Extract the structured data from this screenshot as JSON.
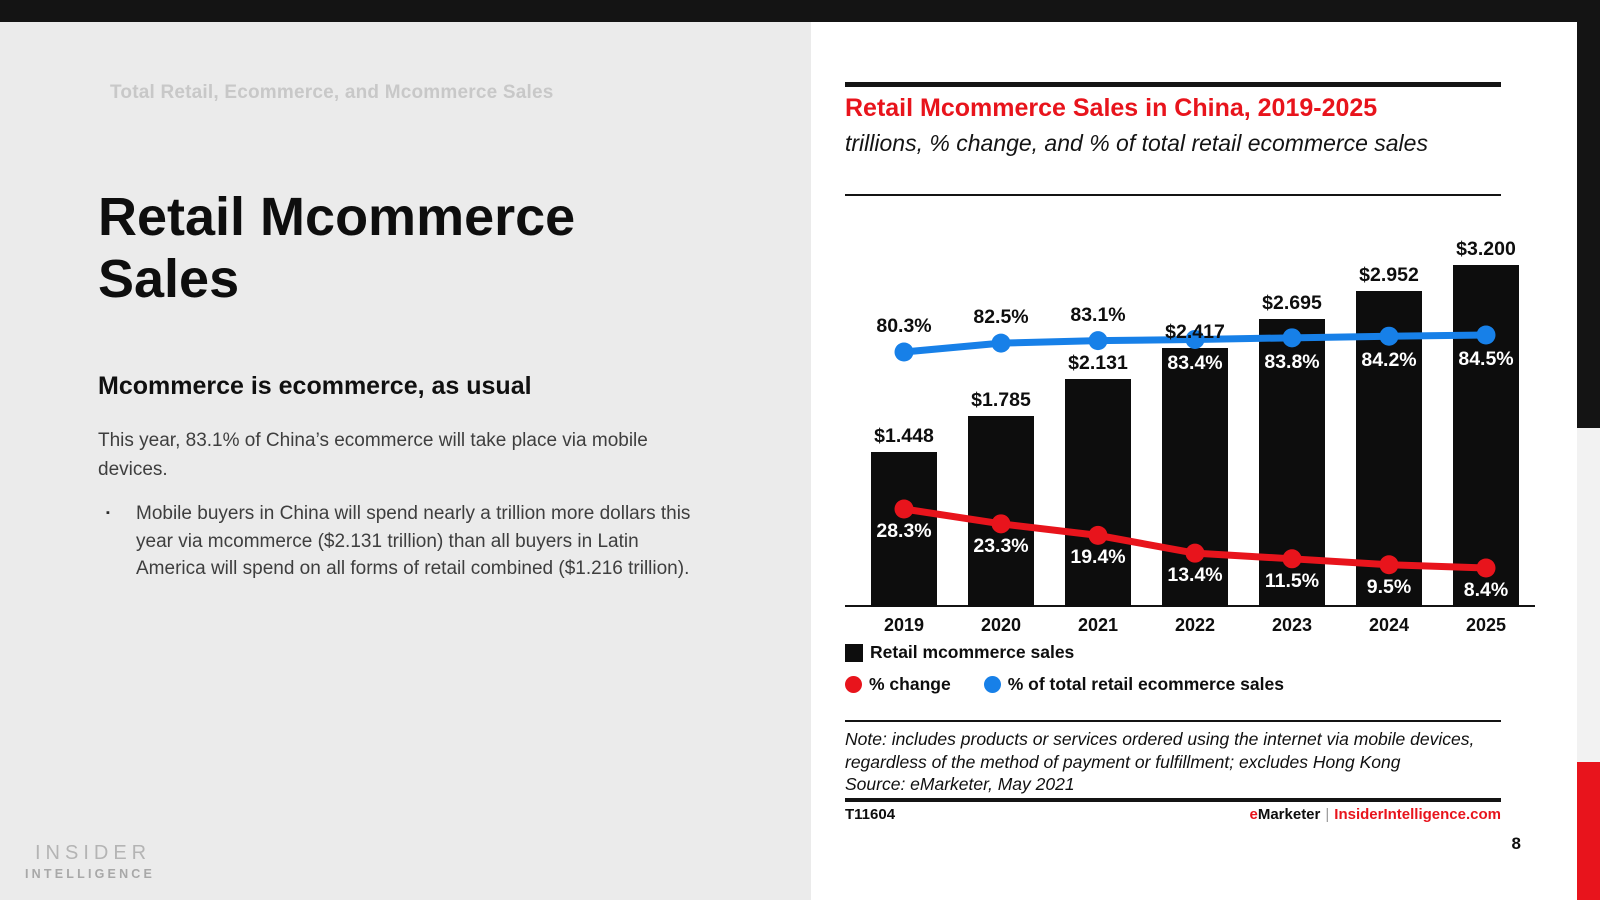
{
  "left_panel": {
    "eyebrow": "Total Retail, Ecommerce, and Mcommerce Sales",
    "title": "Retail Mcommerce Sales",
    "subhead": "Mcommerce is ecommerce, as usual",
    "paragraph": "This year, 83.1% of China’s ecommerce will take place via mobile devices.",
    "bullet_marker": "▪",
    "bullet": "Mobile buyers in China will spend nearly a trillion more dollars this year via mcommerce ($2.131 trillion) than all buyers in Latin America will spend on all forms of retail combined ($1.216 trillion).",
    "logo_line1": "INSIDER",
    "logo_line2": "INTELLIGENCE"
  },
  "chart_card": {
    "title": "Retail Mcommerce Sales in China, 2019-2025",
    "subtitle": "trillions, % change, and % of total retail ecommerce sales",
    "note_line1": "Note: includes products or services ordered using the internet via mobile devices, regardless of the method of payment or fulfillment; excludes Hong Kong",
    "note_line2": "Source: eMarketer, May 2021",
    "footer_id": "T11604",
    "brand_e": "e",
    "brand_rest": "Marketer",
    "brand_sep": "|",
    "brand_site": "InsiderIntelligence.com"
  },
  "page": {
    "number": "8"
  },
  "colors": {
    "red": "#e8141c",
    "blue": "#1780e8",
    "bar_black": "#0d0d0d",
    "panel_gray": "#ebebeb",
    "strip_gray": "#f2f2f2"
  },
  "chart_data": {
    "type": "bar",
    "title": "Retail Mcommerce Sales in China, 2019-2025",
    "subtitle": "trillions, % change, and % of total retail ecommerce sales",
    "categories": [
      "2019",
      "2020",
      "2021",
      "2022",
      "2023",
      "2024",
      "2025"
    ],
    "grid": false,
    "legend_position": "bottom",
    "series": [
      {
        "name": "Retail mcommerce sales",
        "type": "bar",
        "unit": "trillions of dollars",
        "color": "#0d0d0d",
        "values": [
          1.448,
          1.785,
          2.131,
          2.417,
          2.695,
          2.952,
          3.2
        ],
        "labels": [
          "$1.448",
          "$1.785",
          "$2.131",
          "$2.417",
          "$2.695",
          "$2.952",
          "$3.200"
        ]
      },
      {
        "name": "% change",
        "type": "line",
        "unit": "percent",
        "color": "#e8141c",
        "values": [
          28.3,
          23.3,
          19.4,
          13.4,
          11.5,
          9.5,
          8.4
        ],
        "labels": [
          "28.3%",
          "23.3%",
          "19.4%",
          "13.4%",
          "11.5%",
          "9.5%",
          "8.4%"
        ]
      },
      {
        "name": "% of total retail ecommerce sales",
        "type": "line",
        "unit": "percent",
        "color": "#1780e8",
        "values": [
          80.3,
          82.5,
          83.1,
          83.4,
          83.8,
          84.2,
          84.5
        ],
        "labels": [
          "80.3%",
          "82.5%",
          "83.1%",
          "83.4%",
          "83.8%",
          "84.2%",
          "84.5%"
        ]
      }
    ]
  }
}
